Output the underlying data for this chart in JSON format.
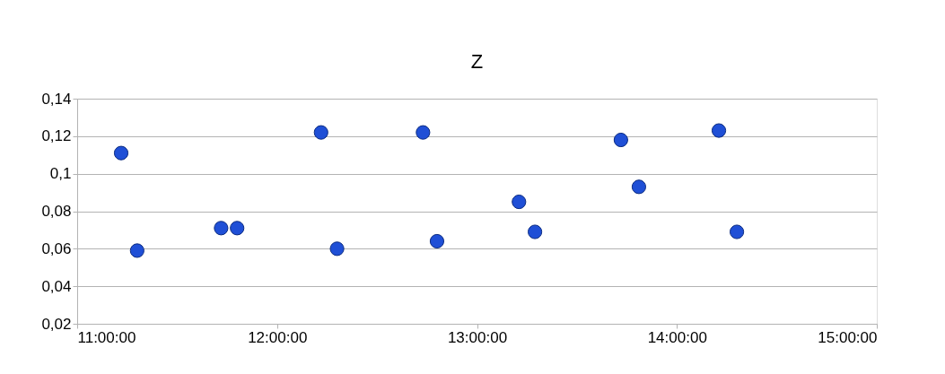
{
  "chart_data": {
    "type": "scatter",
    "title": "Z",
    "x": [
      11.22,
      11.3,
      11.72,
      11.8,
      12.22,
      12.3,
      12.73,
      12.8,
      13.21,
      13.29,
      13.72,
      13.81,
      14.21,
      14.3
    ],
    "series": [
      {
        "color": "#1f4fd6",
        "values": [
          0.111,
          0.059,
          0.071,
          0.071,
          0.122,
          0.06,
          0.122,
          0.064,
          0.085,
          0.069,
          0.118,
          0.093,
          0.123,
          0.069
        ]
      }
    ],
    "xlim": [
      11,
      15
    ],
    "xticks": [
      {
        "value": 11,
        "label": "11:00:00"
      },
      {
        "value": 12,
        "label": "12:00:00"
      },
      {
        "value": 13,
        "label": "13:00:00"
      },
      {
        "value": 14,
        "label": "14:00:00"
      },
      {
        "value": 15,
        "label": "15:00:00"
      }
    ],
    "ylim": [
      0.02,
      0.14
    ],
    "yticks": [
      {
        "value": 0.02,
        "label": "0,02"
      },
      {
        "value": 0.04,
        "label": "0,04"
      },
      {
        "value": 0.06,
        "label": "0,06"
      },
      {
        "value": 0.08,
        "label": "0,08"
      },
      {
        "value": 0.1,
        "label": "0,1"
      },
      {
        "value": 0.12,
        "label": "0,12"
      },
      {
        "value": 0.14,
        "label": "0,14"
      }
    ],
    "grid": "y",
    "legend": false,
    "marker": "circle"
  }
}
